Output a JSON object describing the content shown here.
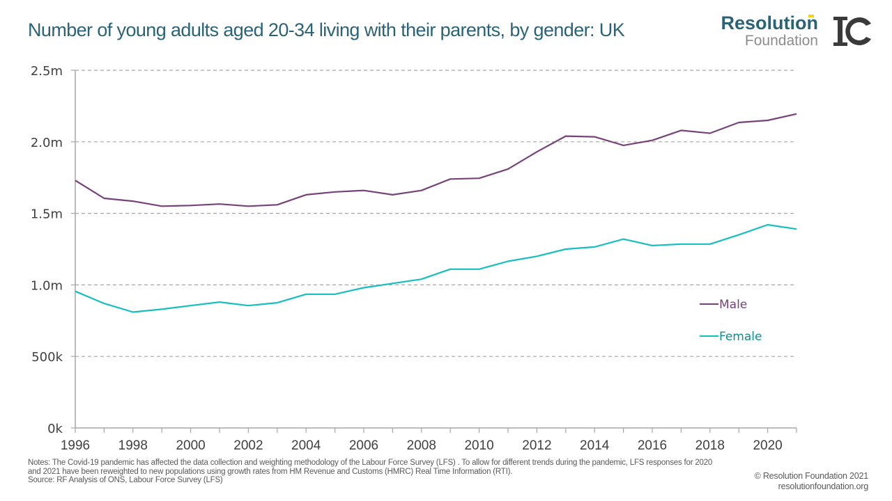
{
  "header": {
    "title": "Number of young adults aged 20-34 living with their parents, by gender: UK",
    "logo_line1": "Resolution",
    "logo_line2": "Foundation",
    "logo_icon": "ic-monogram-icon"
  },
  "colors": {
    "title": "#2a6378",
    "male": "#77417a",
    "female": "#16bfbf",
    "grid": "#a6a6a6",
    "axis_text": "#404040",
    "accent": "#f2d21b"
  },
  "chart_data": {
    "type": "line",
    "title": "Number of young adults aged 20-34 living with their parents, by gender: UK",
    "xlabel": "",
    "ylabel": "",
    "x": [
      1996,
      1997,
      1998,
      1999,
      2000,
      2001,
      2002,
      2003,
      2004,
      2005,
      2006,
      2007,
      2008,
      2009,
      2010,
      2011,
      2012,
      2013,
      2014,
      2015,
      2016,
      2017,
      2018,
      2019,
      2020,
      2021
    ],
    "x_tick_labels": [
      "1996",
      "1998",
      "2000",
      "2002",
      "2004",
      "2006",
      "2008",
      "2010",
      "2012",
      "2014",
      "2016",
      "2018",
      "2020"
    ],
    "x_tick_values": [
      1996,
      1998,
      2000,
      2002,
      2004,
      2006,
      2008,
      2010,
      2012,
      2014,
      2016,
      2018,
      2020
    ],
    "xlim": [
      1996,
      2021
    ],
    "ylim": [
      0,
      2500000
    ],
    "y_ticks": [
      0,
      500000,
      1000000,
      1500000,
      2000000,
      2500000
    ],
    "y_tick_labels": [
      "0k",
      "500k",
      "1.0m",
      "1.5m",
      "2.0m",
      "2.5m"
    ],
    "grid": "horizontal-dashed",
    "legend_position": "right-center",
    "series": [
      {
        "name": "Male",
        "color": "#77417a",
        "values": [
          1730000,
          1605000,
          1585000,
          1550000,
          1555000,
          1565000,
          1550000,
          1560000,
          1630000,
          1650000,
          1660000,
          1630000,
          1660000,
          1740000,
          1745000,
          1810000,
          1930000,
          2040000,
          2035000,
          1975000,
          2010000,
          2080000,
          2060000,
          2135000,
          2150000,
          2195000
        ]
      },
      {
        "name": "Female",
        "color": "#16bfbf",
        "values": [
          955000,
          870000,
          810000,
          830000,
          855000,
          880000,
          855000,
          875000,
          935000,
          935000,
          980000,
          1010000,
          1040000,
          1110000,
          1110000,
          1165000,
          1200000,
          1250000,
          1265000,
          1320000,
          1275000,
          1285000,
          1285000,
          1350000,
          1420000,
          1390000
        ]
      }
    ]
  },
  "footer": {
    "notes": "Notes: The Covid-19 pandemic has affected the data collection and weighting methodology  of the Labour Force Survey (LFS) . To allow for different trends during the pandemic, LFS responses for 2020 and 2021 have been reweighted to new populations using growth rates from HM Revenue and Customs (HMRC) Real Time Information (RTI).",
    "source": "Source: RF Analysis of ONS, Labour Force Survey (LFS)",
    "copyright": "© Resolution Foundation 2021",
    "website": "resolutionfoundation.org"
  }
}
